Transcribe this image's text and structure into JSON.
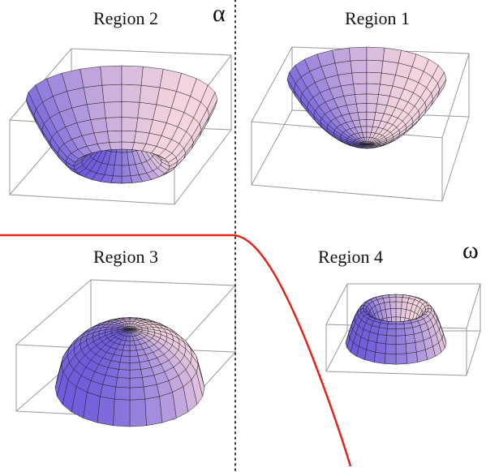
{
  "regions": [
    {
      "label": "Region 2"
    },
    {
      "label": "Region 1"
    },
    {
      "label": "Region 3"
    },
    {
      "label": "Region 4"
    }
  ],
  "axes": {
    "vertical": "α",
    "horizontal": "ω"
  }
}
